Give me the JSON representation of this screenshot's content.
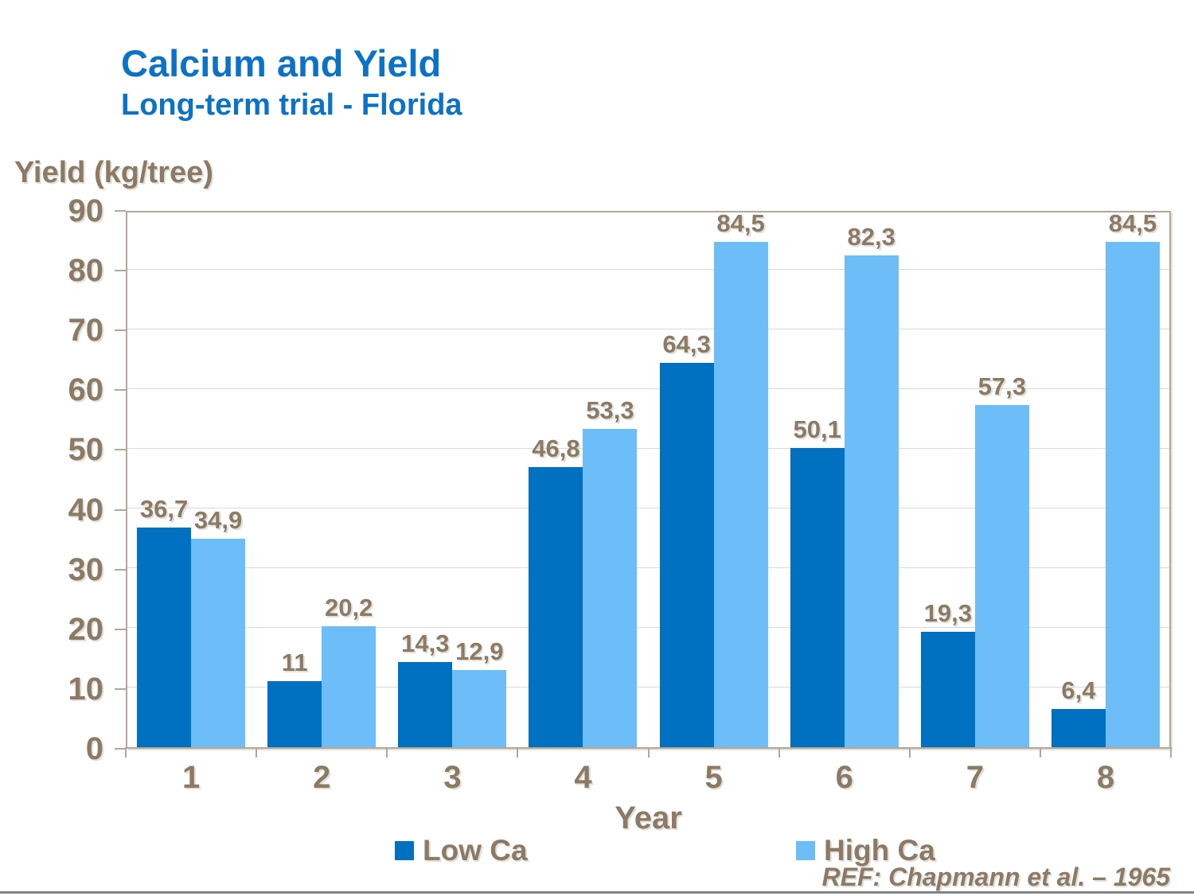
{
  "slide": {
    "title": "Calcium and Yield",
    "subtitle": "Long-term trial - Florida",
    "reference": "REF: Chapmann et al. – 1965"
  },
  "chart_data": {
    "type": "bar",
    "title": "Calcium and Yield",
    "subtitle": "Long-term trial - Florida",
    "categories": [
      "1",
      "2",
      "3",
      "4",
      "5",
      "6",
      "7",
      "8"
    ],
    "series": [
      {
        "name": "Low Ca",
        "color": "#0070C0",
        "values": [
          36.7,
          11,
          14.3,
          46.8,
          64.3,
          50.1,
          19.3,
          6.4
        ],
        "value_labels": [
          "36,7",
          "11",
          "14,3",
          "46,8",
          "64,3",
          "50,1",
          "19,3",
          "6,4"
        ]
      },
      {
        "name": "High Ca",
        "color": "#6DBEF8",
        "values": [
          34.9,
          20.2,
          12.9,
          53.3,
          84.5,
          82.3,
          57.3,
          84.5
        ],
        "value_labels": [
          "34,9",
          "20,2",
          "12,9",
          "53,3",
          "84,5",
          "82,3",
          "57,3",
          "84,5"
        ]
      }
    ],
    "xlabel": "Year",
    "ylabel": "Yield (kg/tree)",
    "ylim": [
      0,
      90
    ],
    "yticks": [
      0,
      10,
      20,
      30,
      40,
      50,
      60,
      70,
      80,
      90
    ],
    "grid": "horizontal",
    "legend_position": "bottom"
  },
  "colors": {
    "title": "#0C72C6",
    "text": "#8A7A66",
    "grid": "#D9D9D9",
    "plot_border": "#B3A79A",
    "bar_low": "#0070C0",
    "bar_high": "#6DBEF8",
    "footer_line": "#848484",
    "background": "#FFFFFF"
  }
}
